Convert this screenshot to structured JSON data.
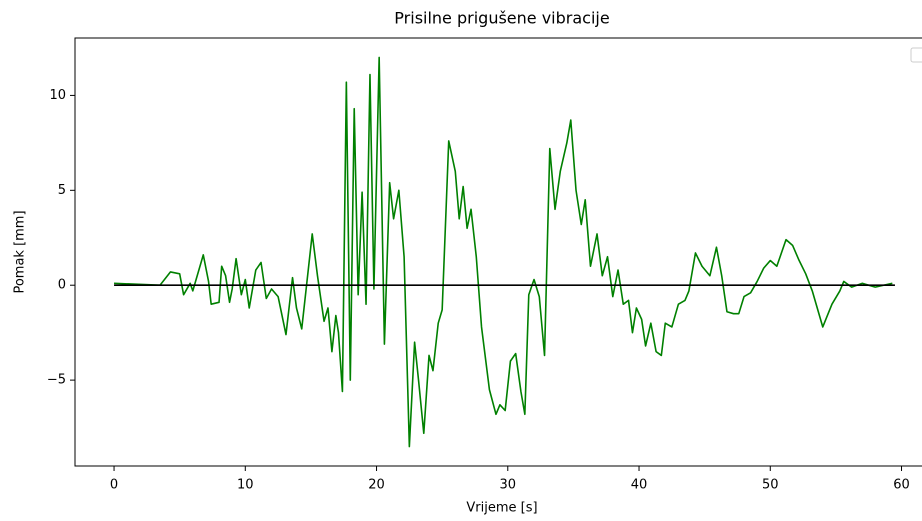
{
  "chart_data": {
    "type": "line",
    "title": "Prisilne prigušene vibracije",
    "xlabel": "Vrijeme [s]",
    "ylabel": "Pomak [mm]",
    "xlim": [
      -2.975,
      62.475
    ],
    "ylim": [
      -9.525,
      13.025
    ],
    "xticks": [
      0,
      10,
      20,
      30,
      40,
      50,
      60
    ],
    "yticks": [
      {
        "value": -5,
        "label": "−5"
      },
      0,
      5,
      10
    ],
    "legend": "upper right",
    "series": [
      {
        "color": "#008000",
        "x": [
          0,
          3.5,
          4.3,
          5,
          5.3,
          5.8,
          6,
          6.8,
          7.2,
          7.4,
          8,
          8.2,
          8.5,
          8.8,
          9,
          9.3,
          9.7,
          10,
          10.3,
          10.8,
          11.2,
          11.6,
          12,
          12.5,
          13.1,
          13.6,
          13.9,
          14.3,
          15.1,
          15.5,
          16,
          16.3,
          16.6,
          16.9,
          17.1,
          17.4,
          17.7,
          18,
          18.3,
          18.6,
          18.9,
          19.2,
          19.5,
          19.8,
          20.2,
          20.6,
          21,
          21.3,
          21.7,
          22.1,
          22.5,
          22.9,
          23.2,
          23.6,
          24,
          24.3,
          24.7,
          25,
          25.5,
          26,
          26.3,
          26.6,
          26.9,
          27.2,
          27.6,
          28,
          28.6,
          29.1,
          29.4,
          29.8,
          30.2,
          30.6,
          31,
          31.3,
          31.6,
          32,
          32.4,
          32.8,
          33.2,
          33.6,
          34,
          34.5,
          34.8,
          35.2,
          35.6,
          35.9,
          36.3,
          36.8,
          37.2,
          37.6,
          38,
          38.4,
          38.8,
          39.2,
          39.5,
          39.8,
          40.2,
          40.5,
          40.9,
          41.3,
          41.7,
          42,
          42.5,
          43,
          43.5,
          43.8,
          44.3,
          44.8,
          45.4,
          45.9,
          46.3,
          46.7,
          47.2,
          47.6,
          48,
          48.5,
          49,
          49.5,
          50,
          50.5,
          51.2,
          51.7,
          52.2,
          52.7,
          53.2,
          54,
          54.7,
          55.3,
          55.6,
          56.2,
          57,
          58,
          59.3
        ],
        "values": [
          0.1,
          0,
          0.7,
          0.6,
          -0.5,
          0.1,
          -0.3,
          1.6,
          0.2,
          -1.0,
          -0.9,
          1.0,
          0.5,
          -0.9,
          -0.2,
          1.4,
          -0.5,
          0.3,
          -1.2,
          0.8,
          1.2,
          -0.7,
          -0.2,
          -0.6,
          -2.6,
          0.4,
          -1.2,
          -2.3,
          2.7,
          0.5,
          -1.9,
          -1.2,
          -3.5,
          -1.6,
          -2.5,
          -5.6,
          10.7,
          -5.0,
          9.3,
          -0.5,
          4.9,
          -1.0,
          11.1,
          -0.2,
          12.0,
          -3.1,
          5.4,
          3.5,
          5.0,
          1.5,
          -8.5,
          -3.0,
          -5.0,
          -7.8,
          -3.7,
          -4.5,
          -2.0,
          -1.3,
          7.6,
          6.0,
          3.5,
          5.2,
          3.0,
          4.0,
          1.5,
          -2.2,
          -5.5,
          -6.8,
          -6.3,
          -6.6,
          -4.0,
          -3.6,
          -5.6,
          -6.8,
          -0.5,
          0.3,
          -0.6,
          -3.7,
          7.2,
          4.0,
          6.0,
          7.5,
          8.7,
          5.0,
          3.2,
          4.5,
          1.0,
          2.7,
          0.5,
          1.5,
          -0.6,
          0.8,
          -1.0,
          -0.8,
          -2.5,
          -1.2,
          -1.8,
          -3.2,
          -2.0,
          -3.5,
          -3.7,
          -2.0,
          -2.2,
          -1.0,
          -0.8,
          -0.3,
          1.7,
          1.0,
          0.5,
          2.0,
          0.5,
          -1.4,
          -1.5,
          -1.5,
          -0.6,
          -0.4,
          0.2,
          0.9,
          1.3,
          1.0,
          2.4,
          2.1,
          1.3,
          0.6,
          -0.3,
          -2.2,
          -1.0,
          -0.3,
          0.2,
          -0.1,
          0.1,
          -0.1,
          0.1
        ]
      },
      {
        "color": "#000000",
        "x": [
          0,
          59.5
        ],
        "values": [
          0,
          0
        ]
      }
    ]
  }
}
